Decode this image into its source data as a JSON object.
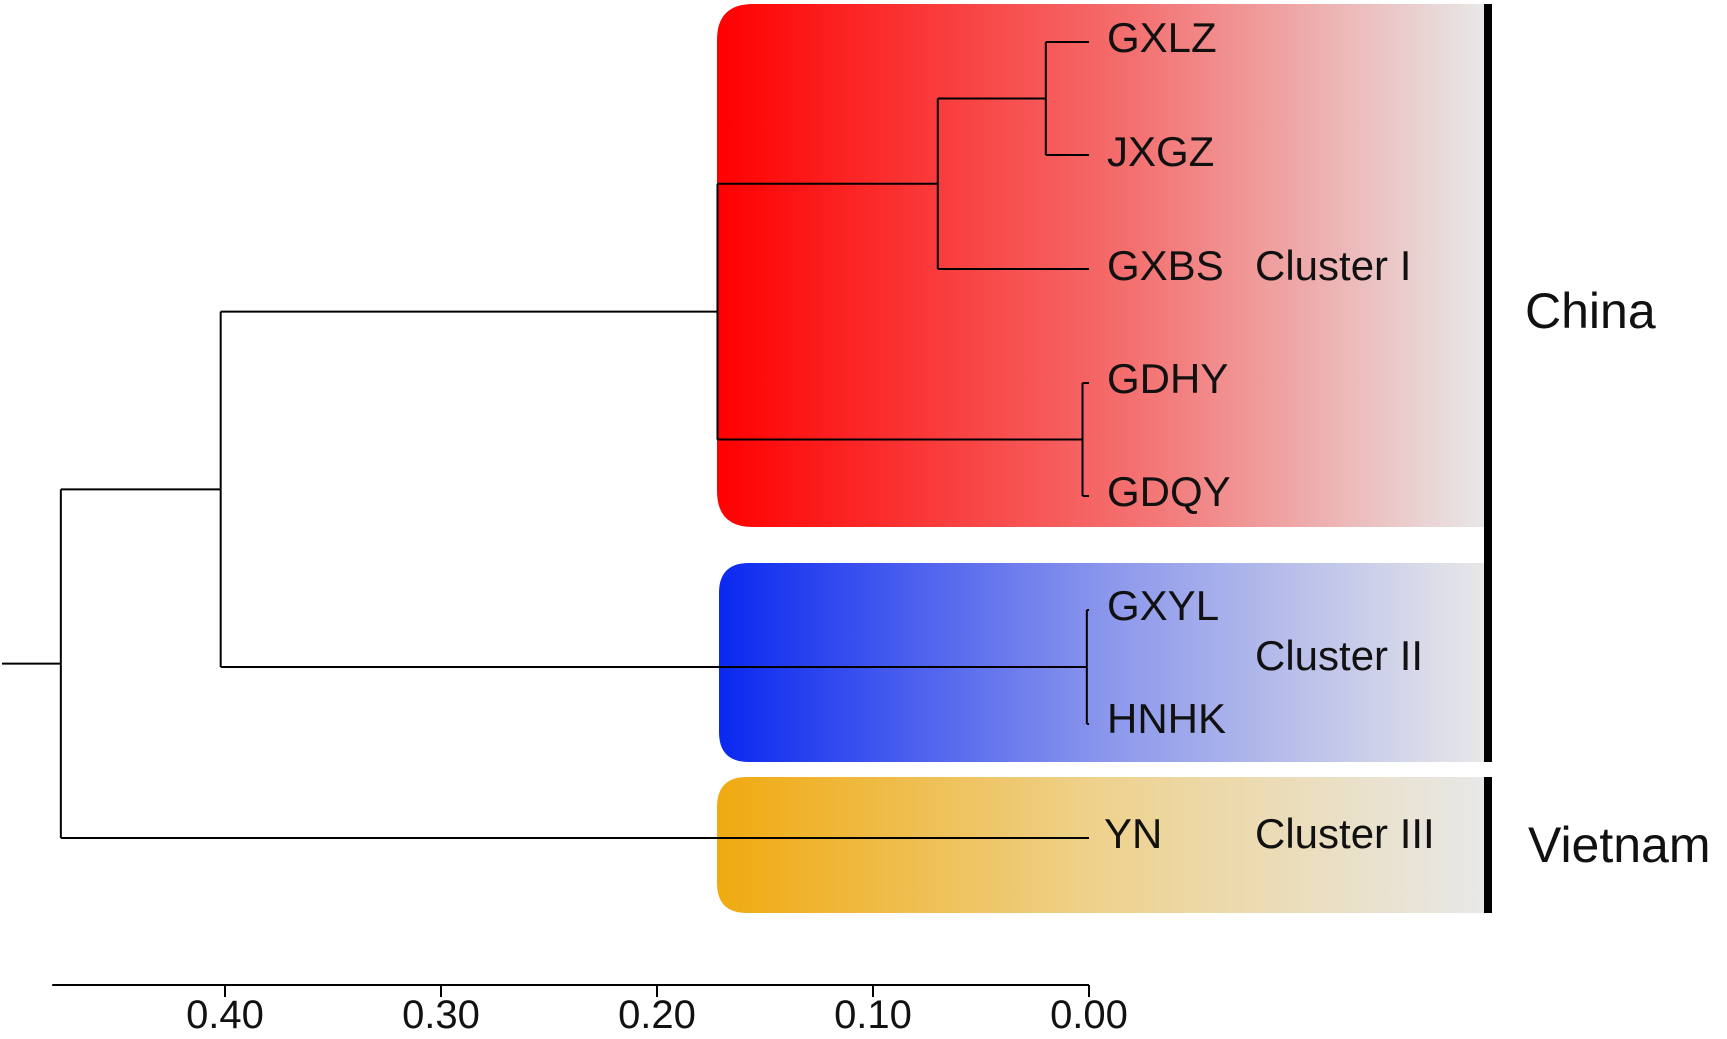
{
  "figure_type": "UPGMA dendrogram",
  "leaves": [
    {
      "key": "gxlz",
      "label": "GXLZ"
    },
    {
      "key": "jxgz",
      "label": "JXGZ"
    },
    {
      "key": "gxbs",
      "label": "GXBS"
    },
    {
      "key": "gdhy",
      "label": "GDHY"
    },
    {
      "key": "gdqy",
      "label": "GDQY"
    },
    {
      "key": "gxyl",
      "label": "GXYL"
    },
    {
      "key": "hnhk",
      "label": "HNHK"
    },
    {
      "key": "yn",
      "label": "YN"
    }
  ],
  "clusters": [
    {
      "key": "cluster-1",
      "label": "Cluster I",
      "members": [
        "GXLZ",
        "JXGZ",
        "GXBS",
        "GDHY",
        "GDQY"
      ],
      "color_start": "#ff0000",
      "color_end": "#e8e8e8"
    },
    {
      "key": "cluster-2",
      "label": "Cluster II",
      "members": [
        "GXYL",
        "HNHK"
      ],
      "color_start": "#0a28f0",
      "color_end": "#e8e8e8"
    },
    {
      "key": "cluster-3",
      "label": "Cluster III",
      "members": [
        "YN"
      ],
      "color_start": "#f0aa10",
      "color_end": "#e8e8e8"
    }
  ],
  "regions": [
    {
      "key": "china",
      "label": "China"
    },
    {
      "key": "vietnam",
      "label": "Vietnam"
    }
  ],
  "axis": {
    "ticks": [
      "0.40",
      "0.30",
      "0.20",
      "0.10",
      "0.00"
    ],
    "tick_values": [
      0.4,
      0.3,
      0.2,
      0.1,
      0.0
    ],
    "min": 0.0,
    "max": 0.48
  },
  "merge_heights": {
    "gxlz_jxgz": 0.02,
    "gxlz_jxgz_gxbs": 0.07,
    "gdhy_gdqy": 0.003,
    "cluster_I": 0.172,
    "gxyl_hnhk": 0.001,
    "china": 0.402,
    "root": 0.476
  }
}
